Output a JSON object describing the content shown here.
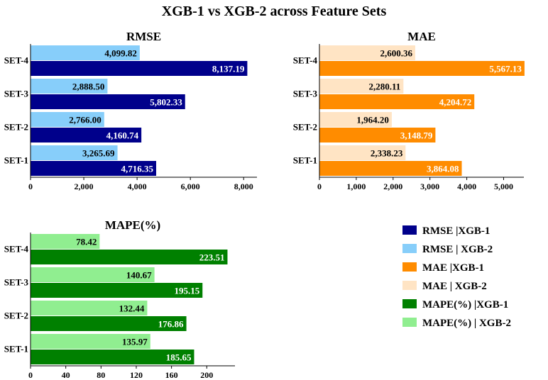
{
  "figure": {
    "title": "XGB-1 vs XGB-2 across Feature Sets"
  },
  "chart_data": [
    {
      "type": "bar",
      "orientation": "horizontal",
      "title": "RMSE",
      "categories": [
        "SET-1",
        "SET-2",
        "SET-3",
        "SET-4"
      ],
      "series": [
        {
          "name": "RMSE |XGB-1",
          "color": "#00008b",
          "values": [
            4716.35,
            4160.74,
            5802.33,
            8137.19
          ],
          "labels": [
            "4,716.35",
            "4,160.74",
            "5,802.33",
            "8,137.19"
          ]
        },
        {
          "name": "RMSE | XGB-2",
          "color": "#87cefa",
          "values": [
            3265.69,
            2766.0,
            2888.5,
            4099.82
          ],
          "labels": [
            "3,265.69",
            "2,766.00",
            "2,888.50",
            "4,099.82"
          ]
        }
      ],
      "xlim": [
        0,
        8500
      ],
      "xticks": [
        0,
        2000,
        4000,
        6000,
        8000
      ],
      "xtick_labels": [
        "0",
        "2,000",
        "4,000",
        "6,000",
        "8,000"
      ],
      "grid": false
    },
    {
      "type": "bar",
      "orientation": "horizontal",
      "title": "MAE",
      "categories": [
        "SET-1",
        "SET-2",
        "SET-3",
        "SET-4"
      ],
      "series": [
        {
          "name": "MAE |XGB-1",
          "color": "#ff8c00",
          "values": [
            3864.08,
            3148.79,
            4204.72,
            5567.13
          ],
          "labels": [
            "3,864.08",
            "3,148.79",
            "4,204.72",
            "5,567.13"
          ]
        },
        {
          "name": "MAE | XGB-2",
          "color": "#ffe4c4",
          "values": [
            2338.23,
            1964.2,
            2280.11,
            2600.36
          ],
          "labels": [
            "2,338.23",
            "1,964.20",
            "2,280.11",
            "2,600.36"
          ]
        }
      ],
      "xlim": [
        0,
        5550
      ],
      "xticks": [
        0,
        1000,
        2000,
        3000,
        4000,
        5000
      ],
      "xtick_labels": [
        "0",
        "1,000",
        "2,000",
        "3,000",
        "4,000",
        "5,000"
      ],
      "grid": false
    },
    {
      "type": "bar",
      "orientation": "horizontal",
      "title": "MAPE(%)",
      "categories": [
        "SET-1",
        "SET-2",
        "SET-3",
        "SET-4"
      ],
      "series": [
        {
          "name": "MAPE(%) |XGB-1",
          "color": "#008000",
          "values": [
            185.65,
            176.86,
            195.15,
            223.51
          ],
          "labels": [
            "185.65",
            "176.86",
            "195.15",
            "223.51"
          ]
        },
        {
          "name": "MAPE(%) | XGB-2",
          "color": "#90ee90",
          "values": [
            135.97,
            132.44,
            140.67,
            78.42
          ],
          "labels": [
            "135.97",
            "132.44",
            "140.67",
            "78.42"
          ]
        }
      ],
      "xlim": [
        0,
        232
      ],
      "xticks": [
        0,
        40,
        80,
        120,
        160,
        200
      ],
      "xtick_labels": [
        "0",
        "40",
        "80",
        "120",
        "160",
        "200"
      ],
      "grid": false
    }
  ],
  "legend": {
    "placement": "bottom-right",
    "items": [
      {
        "label": "RMSE |XGB-1",
        "color": "#00008b"
      },
      {
        "label": "RMSE | XGB-2",
        "color": "#87cefa"
      },
      {
        "label": "MAE |XGB-1",
        "color": "#ff8c00"
      },
      {
        "label": "MAE | XGB-2",
        "color": "#ffe4c4"
      },
      {
        "label": "MAPE(%) |XGB-1",
        "color": "#008000"
      },
      {
        "label": "MAPE(%) | XGB-2",
        "color": "#90ee90"
      }
    ]
  }
}
